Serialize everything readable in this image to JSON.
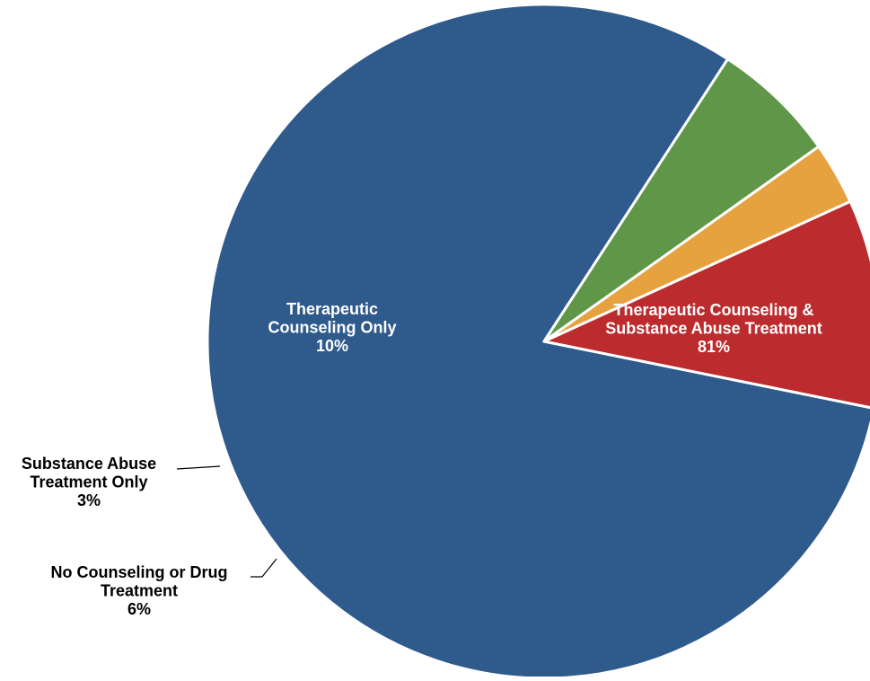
{
  "chart_data": {
    "type": "pie",
    "title": "",
    "slices": [
      {
        "label_lines": [
          "Therapeutic Counseling &",
          "Substance Abuse Treatment"
        ],
        "percent_label": "81%",
        "value": 81,
        "color": "#2F5A8C"
      },
      {
        "label_lines": [
          "No Counseling or Drug",
          "Treatment"
        ],
        "percent_label": "6%",
        "value": 6,
        "color": "#5F9647"
      },
      {
        "label_lines": [
          "Substance Abuse",
          "Treatment Only"
        ],
        "percent_label": "3%",
        "value": 3,
        "color": "#E6A23F"
      },
      {
        "label_lines": [
          "Therapeutic",
          "Counseling Only"
        ],
        "percent_label": "10%",
        "value": 10,
        "color": "#BC2B2E"
      }
    ]
  }
}
